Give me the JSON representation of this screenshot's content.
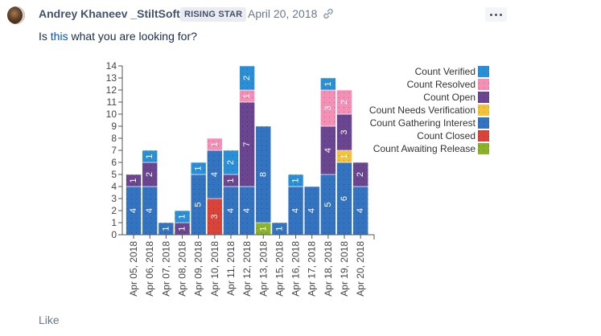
{
  "post": {
    "author": "Andrey Khaneev _StiltSoft_",
    "badge": "RISING STAR",
    "date": "April 20, 2018",
    "body_prefix": "Is ",
    "body_link": "this",
    "body_suffix": " what you are looking for?",
    "like_label": "Like",
    "icons": {
      "avatar": "user-avatar",
      "permalink": "link-icon",
      "more": "more-actions-icon"
    }
  },
  "chart_data": {
    "type": "bar",
    "stacked": true,
    "title": "",
    "xlabel": "",
    "ylabel": "",
    "ylim": [
      0,
      14
    ],
    "yticks": [
      0,
      1,
      2,
      3,
      4,
      5,
      6,
      7,
      8,
      9,
      10,
      11,
      12,
      13,
      14
    ],
    "legend_position": "right",
    "categories": [
      "Apr 05, 2018",
      "Apr 06, 2018",
      "Apr 07, 2018",
      "Apr 08, 2018",
      "Apr 09, 2018",
      "Apr 10, 2018",
      "Apr 11, 2018",
      "Apr 12, 2018",
      "Apr 13, 2018",
      "Apr 15, 2018",
      "Apr 16, 2018",
      "Apr 17, 2018",
      "Apr 18, 2018",
      "Apr 19, 2018",
      "Apr 20, 2018"
    ],
    "series": [
      {
        "name": "Count Verified",
        "color": "#2b8fd6",
        "values": [
          0,
          1,
          0,
          1,
          1,
          0,
          2,
          2,
          0,
          0,
          1,
          0,
          1,
          0,
          0
        ]
      },
      {
        "name": "Count Resolved",
        "color": "#f48fb6",
        "values": [
          0,
          0,
          0,
          0,
          0,
          1,
          0,
          1,
          0,
          0,
          0,
          0,
          3,
          2,
          0
        ]
      },
      {
        "name": "Count Open",
        "color": "#6a4590",
        "values": [
          1,
          2,
          0,
          1,
          0,
          0,
          1,
          7,
          0,
          0,
          0,
          0,
          4,
          3,
          2
        ]
      },
      {
        "name": "Count Needs Verification",
        "color": "#f2c23c",
        "values": [
          0,
          0,
          0,
          0,
          0,
          0,
          0,
          0,
          0,
          0,
          0,
          0,
          0,
          1,
          0
        ]
      },
      {
        "name": "Count Gathering Interest",
        "color": "#3373c0",
        "values": [
          4,
          4,
          1,
          0,
          5,
          4,
          4,
          4,
          8,
          1,
          4,
          4,
          5,
          6,
          4
        ]
      },
      {
        "name": "Count Closed",
        "color": "#d9443a",
        "values": [
          0,
          0,
          0,
          0,
          0,
          3,
          0,
          0,
          0,
          0,
          0,
          0,
          0,
          0,
          0
        ]
      },
      {
        "name": "Count Awaiting Release",
        "color": "#8ab32a",
        "values": [
          0,
          0,
          0,
          0,
          0,
          0,
          0,
          0,
          1,
          0,
          0,
          0,
          0,
          0,
          0
        ]
      }
    ]
  }
}
